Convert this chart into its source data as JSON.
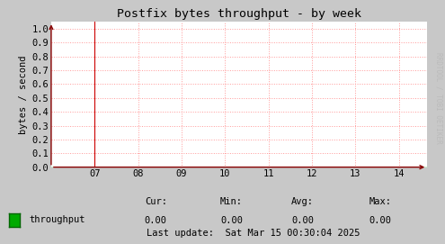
{
  "title": "Postfix bytes throughput - by week",
  "ylabel": "bytes / second",
  "watermark": "RRDTOOL / TOBI OETIKER",
  "bg_color": "#c8c8c8",
  "plot_bg_color": "#ffffff",
  "grid_color": "#ff9999",
  "grid_linestyle": ":",
  "xlim": [
    6.0,
    14.65
  ],
  "ylim": [
    0.0,
    1.05
  ],
  "xticks": [
    7,
    8,
    9,
    10,
    11,
    12,
    13,
    14
  ],
  "xtick_labels": [
    "07",
    "08",
    "09",
    "10",
    "11",
    "12",
    "13",
    "14"
  ],
  "yticks": [
    0.0,
    0.1,
    0.2,
    0.3,
    0.4,
    0.5,
    0.6,
    0.7,
    0.8,
    0.9,
    1.0
  ],
  "axis_color": "#990000",
  "line_color": "#00bb00",
  "line_value": 0.0,
  "legend_label": "throughput",
  "legend_color": "#00aa00",
  "legend_edge_color": "#006600",
  "cur_val": "0.00",
  "min_val": "0.00",
  "avg_val": "0.00",
  "max_val": "0.00",
  "last_update": "Last update:  Sat Mar 15 00:30:04 2025",
  "font_color": "#000000",
  "title_color": "#000000",
  "font_family": "monospace",
  "font_size": 7.5,
  "title_font_size": 9.5,
  "arrow_color": "#880000",
  "red_vertical_line_x": 7.0,
  "red_vertical_line_color": "#cc0000",
  "watermark_color": "#bbbbbb"
}
